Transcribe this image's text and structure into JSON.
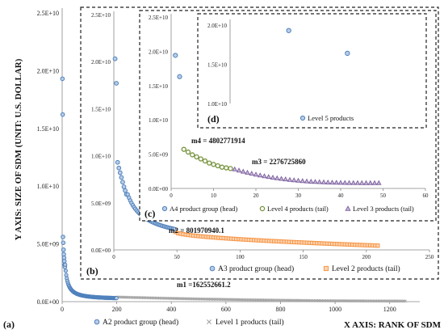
{
  "chart_data": [
    {
      "panel": "(a)",
      "type": "scatter",
      "ylabel": "Y AXIS:   SIZE OF SDM (UNIT:  U.S. DOLLAR)",
      "xlabel": "X AXIS:   RANK OF SDM",
      "x_ticks": [
        "0",
        "200",
        "400",
        "600",
        "800",
        "1000",
        "1200"
      ],
      "y_ticks": [
        "0.0E+00",
        "5.0E+09",
        "1.0E+10",
        "1.5E+10",
        "2.0E+10",
        "2.5E+10"
      ],
      "xlim": [
        0,
        1260
      ],
      "ylim": [
        0,
        25000000000
      ],
      "annotation": "m1 =162552661.2",
      "series": [
        {
          "name": "A2 product group (head)",
          "marker": "circle",
          "color": "#4f81bd",
          "first_values": [
            19300000000,
            16200000000,
            5600000000,
            5100000000,
            4500000000,
            4100000000,
            3800000000,
            3500000000,
            3200000000,
            3000000000
          ],
          "range": [
            1,
            200
          ]
        },
        {
          "name": "Level 1 products (tail)",
          "marker": "x",
          "color": "#a0a0a0",
          "range": [
            201,
            1260
          ]
        }
      ]
    },
    {
      "panel": "(b)",
      "type": "scatter",
      "x_ticks": [
        "0",
        "50",
        "100",
        "150",
        "200",
        "250"
      ],
      "y_ticks": [
        "0.0E+00",
        "5.0E+09",
        "1.0E+10",
        "1.5E+10",
        "2.0E+10",
        "2.5E+10"
      ],
      "xlim": [
        0,
        250
      ],
      "ylim": [
        0,
        25000000000
      ],
      "annotation": "m2 = 801970940.1",
      "series": [
        {
          "name": "A3 product group (head)",
          "marker": "circle",
          "color": "#4f81bd",
          "first_values": [
            20300000000,
            17700000000,
            9300000000,
            8700000000,
            8200000000,
            7700000000,
            7200000000,
            6700000000,
            6300000000,
            5900000000
          ],
          "range": [
            1,
            48
          ]
        },
        {
          "name": "Level 2 products (tail)",
          "marker": "square",
          "color": "#f79646",
          "range": [
            49,
            210
          ]
        }
      ]
    },
    {
      "panel": "(c)",
      "type": "scatter",
      "x_ticks": [
        "0",
        "10",
        "20",
        "30",
        "40",
        "50",
        "60"
      ],
      "y_ticks": [
        "0.0E+00",
        "5.0E+09",
        "1.0E+10",
        "1.5E+10",
        "2.0E+10",
        "2.5E+10"
      ],
      "xlim": [
        0,
        60
      ],
      "ylim": [
        0,
        25000000000
      ],
      "annotations": [
        "m4 = 4802771914",
        "m3 = 2276725860"
      ],
      "series": [
        {
          "name": "A4 product group (head)",
          "marker": "circle",
          "color": "#4f81bd",
          "x": [
            1,
            2
          ],
          "values": [
            19400000000,
            16300000000
          ]
        },
        {
          "name": "Level 4 products (tail)",
          "marker": "circle-open",
          "color": "#77933c",
          "x": [
            3,
            4,
            5,
            6,
            7,
            8,
            9,
            10,
            11,
            12,
            13,
            14
          ],
          "values": [
            5700000000,
            5300000000,
            4900000000,
            4600000000,
            4300000000,
            4000000000,
            3700000000,
            3500000000,
            3300000000,
            3100000000,
            3000000000,
            2900000000
          ]
        },
        {
          "name": "Level 3 products (tail)",
          "marker": "triangle",
          "color": "#8064a2",
          "range": [
            15,
            49
          ],
          "start": 2800000000,
          "end": 800000000
        }
      ]
    },
    {
      "panel": "(d)",
      "type": "scatter",
      "y_ticks": [
        "1.0E+10",
        "1.5E+10",
        "2.0E+10"
      ],
      "ylim": [
        10000000000,
        20000000000
      ],
      "xlim": [
        0,
        3
      ],
      "series": [
        {
          "name": "Level 5 products",
          "marker": "circle",
          "color": "#4f81bd",
          "x": [
            1,
            2
          ],
          "values": [
            19300000000,
            16400000000
          ]
        }
      ]
    }
  ]
}
